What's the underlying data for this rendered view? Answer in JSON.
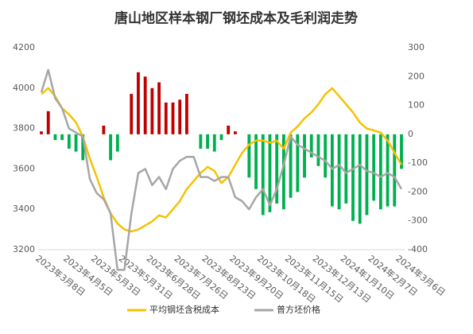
{
  "chart_data": {
    "type": "combo",
    "title": "唐山地区样本钢厂钢坯成本及毛利润走势",
    "categories": [
      "2023年3月8日",
      null,
      null,
      null,
      "2023年4月5日",
      null,
      null,
      null,
      "2023年5月3日",
      null,
      null,
      null,
      "2023年5月31日",
      null,
      null,
      null,
      "2023年6月28日",
      null,
      null,
      null,
      "2023年7月26日",
      null,
      null,
      null,
      "2023年8月23日",
      null,
      null,
      null,
      "2023年9月20日",
      null,
      null,
      null,
      "2023年10月18日",
      null,
      null,
      null,
      "2023年11月15日",
      null,
      null,
      null,
      "2023年12月13日",
      null,
      null,
      null,
      "2024年1月10日",
      null,
      null,
      null,
      "2024年2月7日",
      null,
      null,
      null,
      "2024年3月6日"
    ],
    "series": [
      {
        "type": "bar",
        "axis": "y2",
        "color": "#c00000",
        "negative_color": "#00b050",
        "values": [
          10,
          80,
          -20,
          -20,
          -50,
          -60,
          -90,
          0,
          0,
          30,
          -90,
          -60,
          0,
          140,
          215,
          200,
          160,
          180,
          110,
          110,
          120,
          140,
          0,
          -50,
          -50,
          -60,
          -20,
          30,
          10,
          0,
          -150,
          -190,
          -280,
          -270,
          -240,
          -260,
          -220,
          -200,
          -150,
          -80,
          -110,
          -150,
          -250,
          -260,
          -240,
          -300,
          -310,
          -280,
          -230,
          -260,
          -250,
          -250,
          -120
        ]
      },
      {
        "type": "line",
        "axis": "y",
        "name": "平均钢坯含税成本",
        "color": "#f5c200",
        "values": [
          3970,
          4000,
          3960,
          3900,
          3870,
          3830,
          3760,
          3650,
          3560,
          3460,
          3380,
          3330,
          3300,
          3290,
          3300,
          3320,
          3340,
          3370,
          3360,
          3400,
          3440,
          3500,
          3540,
          3580,
          3610,
          3590,
          3530,
          3560,
          3620,
          3680,
          3720,
          3740,
          3740,
          3730,
          3740,
          3700,
          3780,
          3810,
          3850,
          3880,
          3920,
          3970,
          4000,
          3960,
          3920,
          3880,
          3830,
          3800,
          3790,
          3780,
          3740,
          3680,
          3620
        ]
      },
      {
        "type": "line",
        "axis": "y",
        "name": "普方坯价格",
        "color": "#a6a6a6",
        "values": [
          3980,
          4090,
          3950,
          3900,
          3800,
          3780,
          3760,
          3550,
          3480,
          3450,
          3380,
          3100,
          3100,
          3380,
          3580,
          3600,
          3520,
          3560,
          3500,
          3600,
          3640,
          3660,
          3660,
          3560,
          3560,
          3540,
          3560,
          3560,
          3460,
          3440,
          3400,
          3460,
          3500,
          3420,
          3500,
          3620,
          3760,
          3720,
          3700,
          3680,
          3660,
          3640,
          3600,
          3620,
          3580,
          3600,
          3620,
          3590,
          3580,
          3560,
          3580,
          3560,
          3500
        ]
      }
    ],
    "ylim": [
      3200,
      4200
    ],
    "yticks": [
      3200,
      3400,
      3600,
      3800,
      4000,
      4200
    ],
    "y2lim": [
      -400,
      300
    ],
    "y2ticks": [
      -400,
      -300,
      -200,
      -100,
      0,
      100,
      200,
      300
    ],
    "grid": false,
    "legend": "bottom"
  }
}
